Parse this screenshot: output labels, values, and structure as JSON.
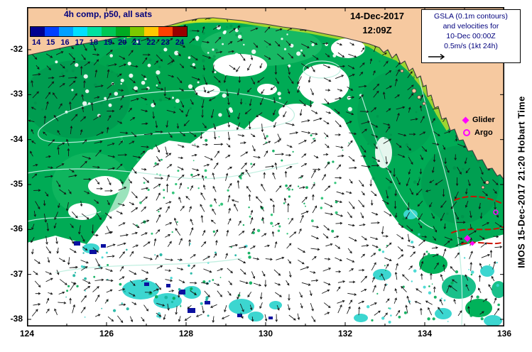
{
  "colorbar": {
    "title": "4h comp, p50, all sats",
    "ticks": [
      "14",
      "15",
      "16",
      "17",
      "18",
      "19",
      "20",
      "21",
      "22",
      "23",
      "24"
    ],
    "colors": [
      "#000090",
      "#0040ff",
      "#00a0ff",
      "#00e0ff",
      "#00e0a0",
      "#00c855",
      "#00aa22",
      "#7cc800",
      "#ffc800",
      "#ff4000",
      "#990000"
    ]
  },
  "header_datetime": {
    "date": "14-Dec-2017",
    "time": "12:09Z"
  },
  "info_box": {
    "lines": [
      "GSLA (0.1m contours)",
      "and velocities for",
      "10-Dec 00:00Z",
      "0.5m/s (1kt 24h)"
    ]
  },
  "legend": {
    "glider_label": "Glider",
    "argo_label": "Argo"
  },
  "watermark": "IMOS 15-Dec-2017 21:20 Hobart Time",
  "axes": {
    "x_ticks": [
      "124",
      "126",
      "128",
      "130",
      "132",
      "134",
      "136"
    ],
    "y_ticks": [
      "-32",
      "-33",
      "-34",
      "-35",
      "-36",
      "-37",
      "-38"
    ]
  },
  "map_colors": {
    "land": "#f6c9a0",
    "ocean_no_data": "#ffffff",
    "sst_green": "#00ab55",
    "cold_patch_cyan": "#3cd6d0",
    "cold_patch_navy": "#0a10a0",
    "gsla_contour": "#bdeede",
    "temperature_front_red": "#cc1100",
    "marker_magenta": "#ff00ff"
  }
}
